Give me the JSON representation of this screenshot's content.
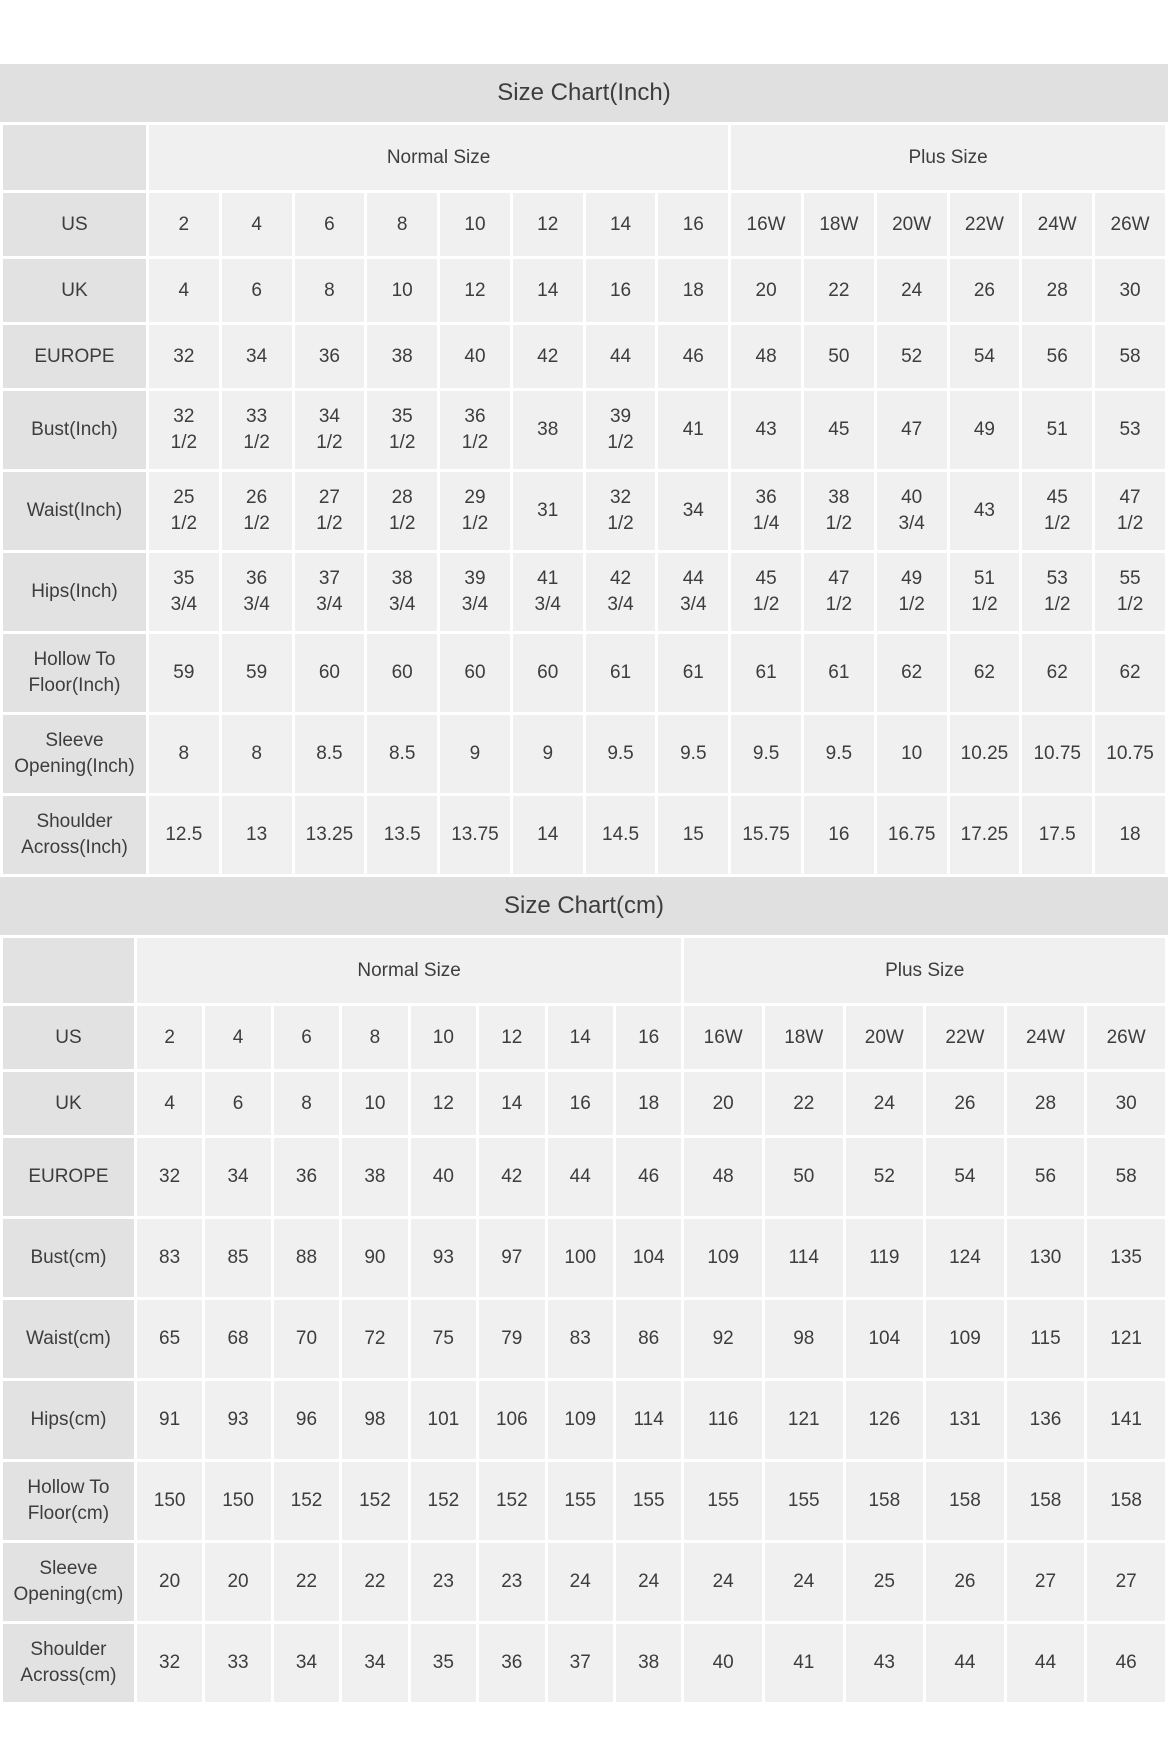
{
  "colors": {
    "title_bar_bg": "#e0e0e0",
    "label_cell_bg": "#e2e2e2",
    "data_cell_bg": "#f0f0f0",
    "text": "#3d3d3d",
    "page_bg": "#ffffff"
  },
  "chart_data": [
    {
      "type": "table",
      "title": "Size Chart(Inch)",
      "group_headers": [
        {
          "label": "",
          "span": 1
        },
        {
          "label": "Normal Size",
          "span": 8
        },
        {
          "label": "Plus Size",
          "span": 6
        }
      ],
      "rows": [
        {
          "label": "US",
          "values": [
            "2",
            "4",
            "6",
            "8",
            "10",
            "12",
            "14",
            "16",
            "16W",
            "18W",
            "20W",
            "22W",
            "24W",
            "26W"
          ]
        },
        {
          "label": "UK",
          "values": [
            "4",
            "6",
            "8",
            "10",
            "12",
            "14",
            "16",
            "18",
            "20",
            "22",
            "24",
            "26",
            "28",
            "30"
          ]
        },
        {
          "label": "EUROPE",
          "values": [
            "32",
            "34",
            "36",
            "38",
            "40",
            "42",
            "44",
            "46",
            "48",
            "50",
            "52",
            "54",
            "56",
            "58"
          ]
        },
        {
          "label": "Bust(Inch)",
          "values": [
            "32 1/2",
            "33 1/2",
            "34 1/2",
            "35 1/2",
            "36 1/2",
            "38",
            "39 1/2",
            "41",
            "43",
            "45",
            "47",
            "49",
            "51",
            "53"
          ]
        },
        {
          "label": "Waist(Inch)",
          "values": [
            "25 1/2",
            "26 1/2",
            "27 1/2",
            "28 1/2",
            "29 1/2",
            "31",
            "32 1/2",
            "34",
            "36 1/4",
            "38 1/2",
            "40 3/4",
            "43",
            "45 1/2",
            "47 1/2"
          ]
        },
        {
          "label": "Hips(Inch)",
          "values": [
            "35 3/4",
            "36 3/4",
            "37 3/4",
            "38 3/4",
            "39 3/4",
            "41 3/4",
            "42 3/4",
            "44 3/4",
            "45 1/2",
            "47 1/2",
            "49 1/2",
            "51 1/2",
            "53 1/2",
            "55 1/2"
          ]
        },
        {
          "label": "Hollow To Floor(Inch)",
          "values": [
            "59",
            "59",
            "60",
            "60",
            "60",
            "60",
            "61",
            "61",
            "61",
            "61",
            "62",
            "62",
            "62",
            "62"
          ]
        },
        {
          "label": "Sleeve Opening(Inch)",
          "values": [
            "8",
            "8",
            "8.5",
            "8.5",
            "9",
            "9",
            "9.5",
            "9.5",
            "9.5",
            "9.5",
            "10",
            "10.25",
            "10.75",
            "10.75"
          ]
        },
        {
          "label": "Shoulder Across(Inch)",
          "values": [
            "12.5",
            "13",
            "13.25",
            "13.5",
            "13.75",
            "14",
            "14.5",
            "15",
            "15.75",
            "16",
            "16.75",
            "17.25",
            "17.5",
            "18"
          ]
        }
      ]
    },
    {
      "type": "table",
      "title": "Size Chart(cm)",
      "group_headers": [
        {
          "label": "",
          "span": 1
        },
        {
          "label": "Normal Size",
          "span": 8
        },
        {
          "label": "Plus Size",
          "span": 6
        }
      ],
      "rows": [
        {
          "label": "US",
          "values": [
            "2",
            "4",
            "6",
            "8",
            "10",
            "12",
            "14",
            "16",
            "16W",
            "18W",
            "20W",
            "22W",
            "24W",
            "26W"
          ]
        },
        {
          "label": "UK",
          "values": [
            "4",
            "6",
            "8",
            "10",
            "12",
            "14",
            "16",
            "18",
            "20",
            "22",
            "24",
            "26",
            "28",
            "30"
          ]
        },
        {
          "label": "EUROPE",
          "values": [
            "32",
            "34",
            "36",
            "38",
            "40",
            "42",
            "44",
            "46",
            "48",
            "50",
            "52",
            "54",
            "56",
            "58"
          ]
        },
        {
          "label": "Bust(cm)",
          "values": [
            "83",
            "85",
            "88",
            "90",
            "93",
            "97",
            "100",
            "104",
            "109",
            "114",
            "119",
            "124",
            "130",
            "135"
          ]
        },
        {
          "label": "Waist(cm)",
          "values": [
            "65",
            "68",
            "70",
            "72",
            "75",
            "79",
            "83",
            "86",
            "92",
            "98",
            "104",
            "109",
            "115",
            "121"
          ]
        },
        {
          "label": "Hips(cm)",
          "values": [
            "91",
            "93",
            "96",
            "98",
            "101",
            "106",
            "109",
            "114",
            "116",
            "121",
            "126",
            "131",
            "136",
            "141"
          ]
        },
        {
          "label": "Hollow To Floor(cm)",
          "values": [
            "150",
            "150",
            "152",
            "152",
            "152",
            "152",
            "155",
            "155",
            "155",
            "155",
            "158",
            "158",
            "158",
            "158"
          ]
        },
        {
          "label": "Sleeve Opening(cm)",
          "values": [
            "20",
            "20",
            "22",
            "22",
            "23",
            "23",
            "24",
            "24",
            "24",
            "24",
            "25",
            "26",
            "27",
            "27"
          ]
        },
        {
          "label": "Shoulder Across(cm)",
          "values": [
            "32",
            "33",
            "34",
            "34",
            "35",
            "36",
            "37",
            "38",
            "40",
            "41",
            "43",
            "44",
            "44",
            "46"
          ]
        }
      ]
    }
  ]
}
